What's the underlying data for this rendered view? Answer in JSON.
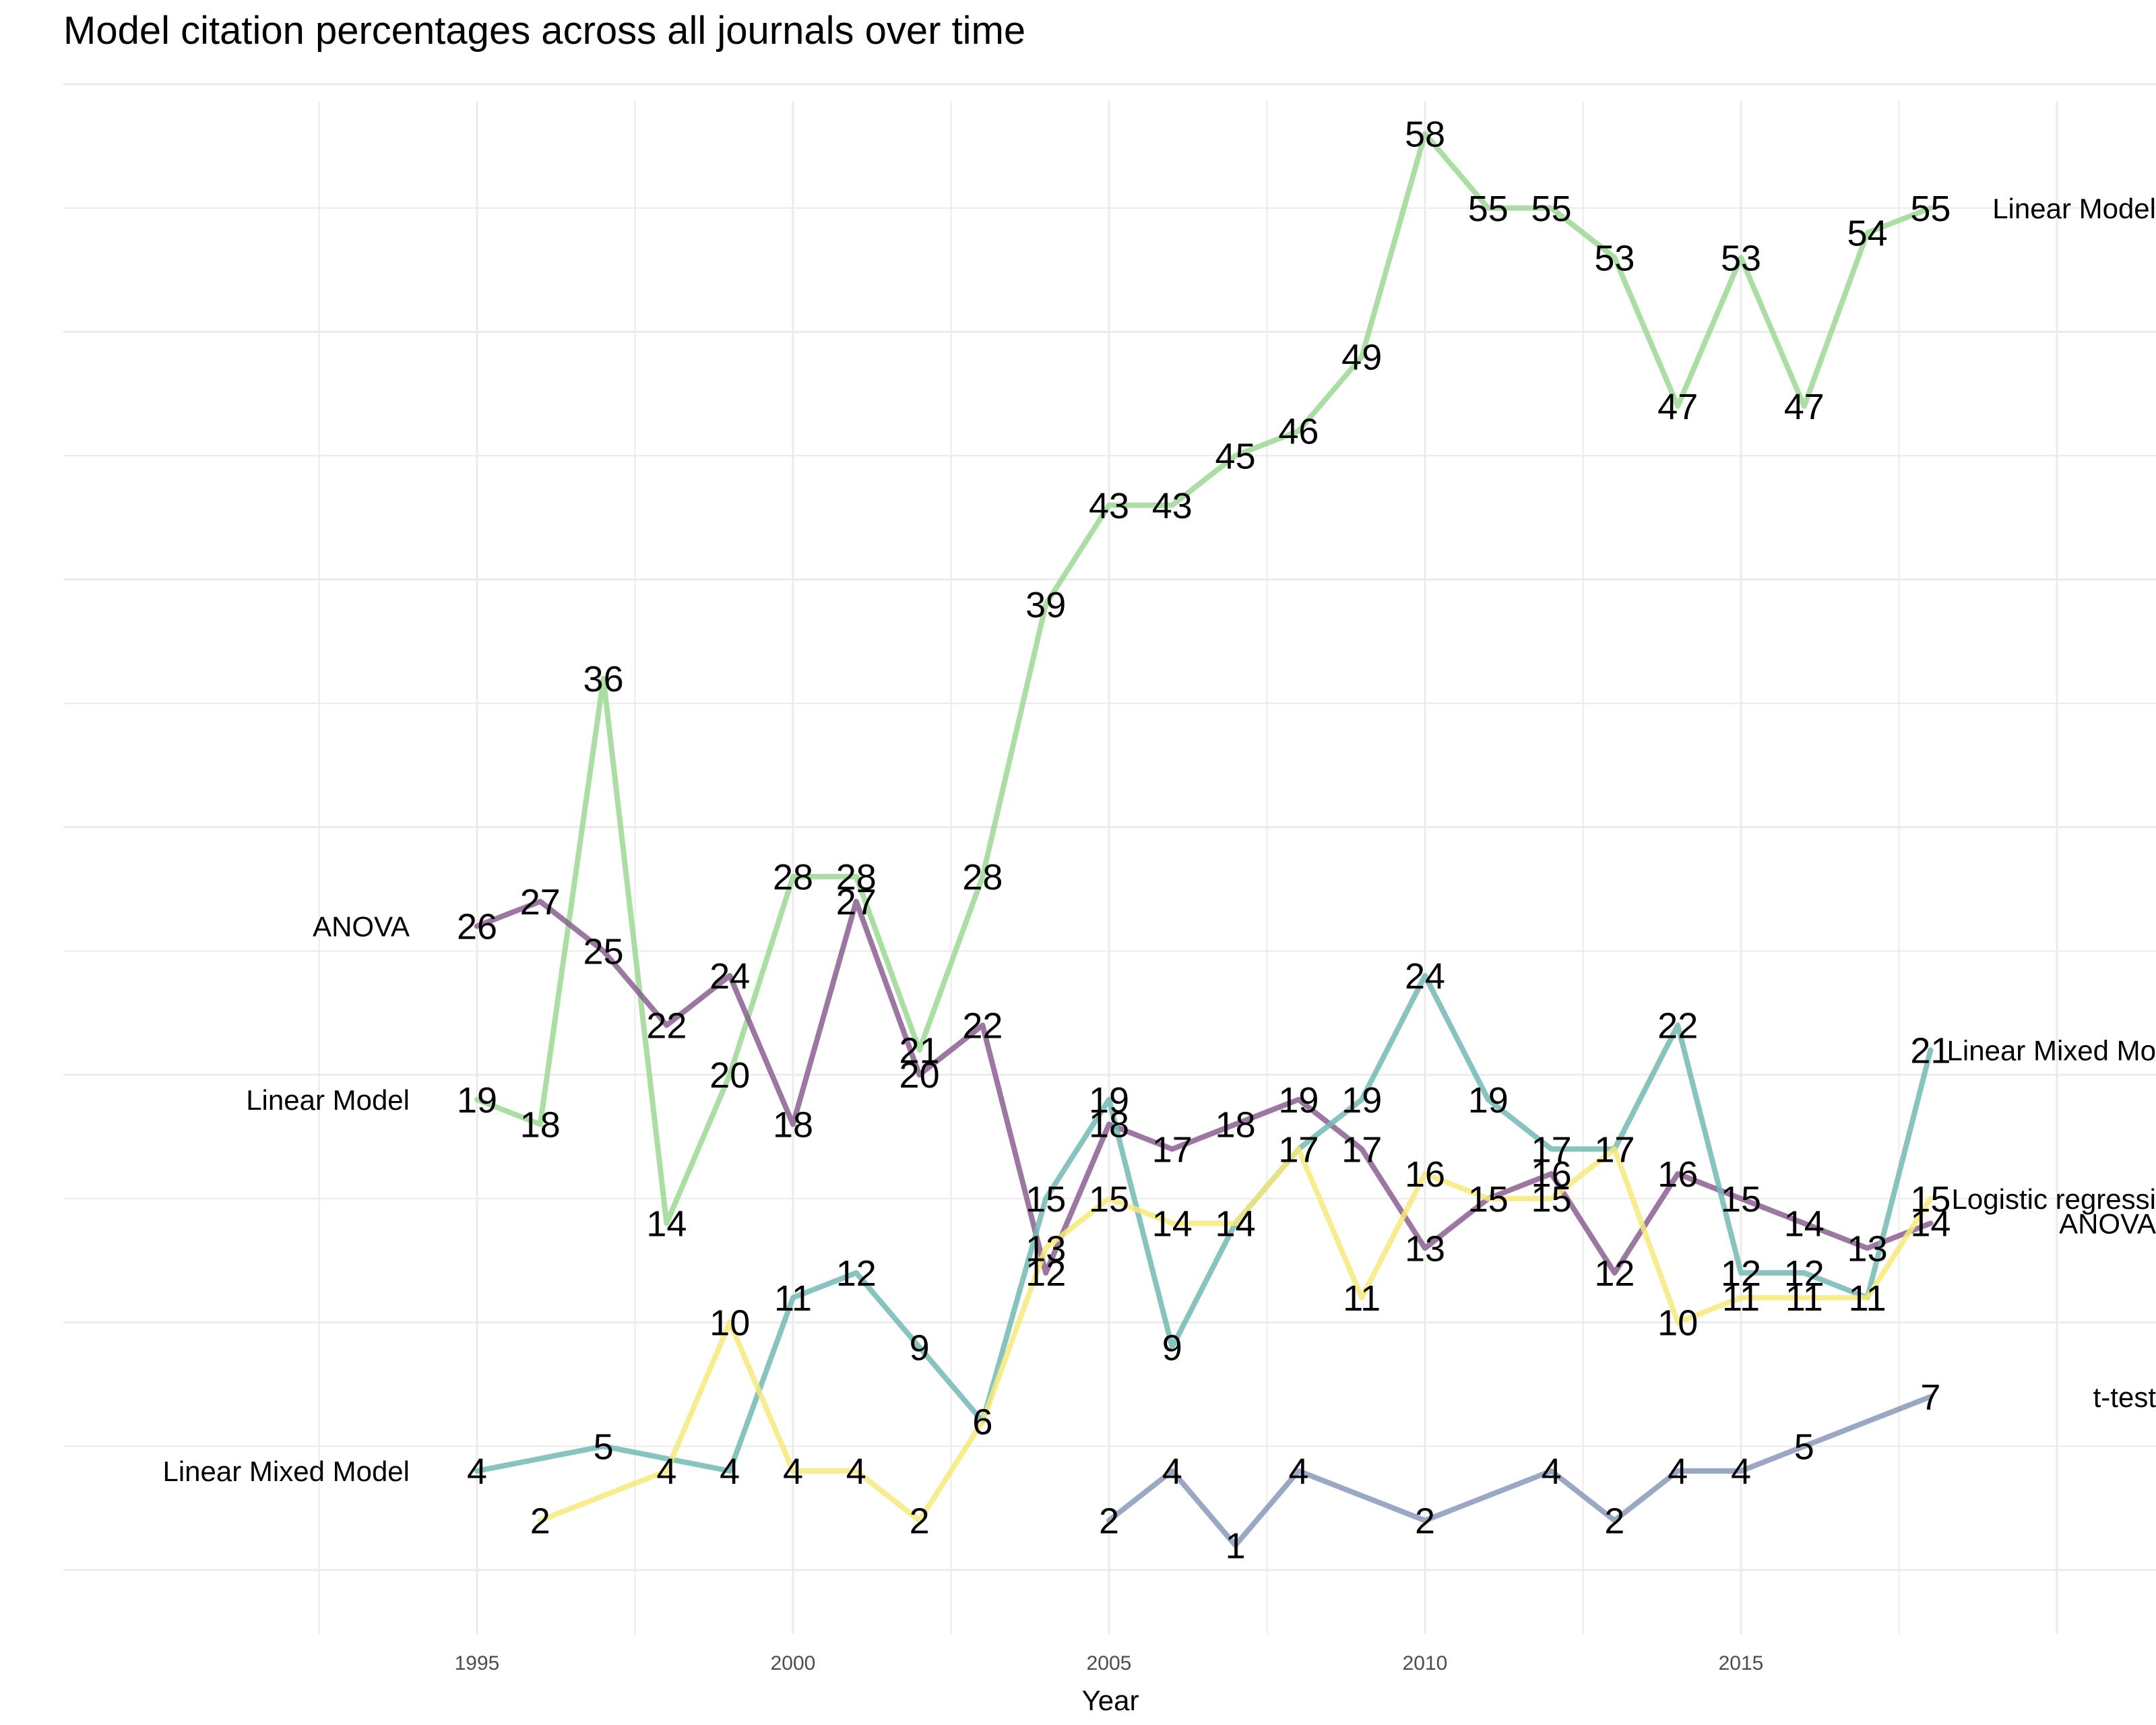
{
  "chart_data": {
    "type": "line",
    "title": "Model citation percentages across all journals over time",
    "xlabel": "Year",
    "ylabel": "",
    "x_ticks": [
      1995,
      2000,
      2005,
      2010,
      2015
    ],
    "xlim": [
      1989.5,
      2021.5
    ],
    "ylim": [
      -2,
      60
    ],
    "grid": true,
    "legend": "direct labels at line ends",
    "series": [
      {
        "name": "Linear Model",
        "color": "#9bd893",
        "x": [
          1995,
          1996,
          1997,
          1998,
          1999,
          2000,
          2001,
          2002,
          2003,
          2004,
          2005,
          2006,
          2007,
          2008,
          2009,
          2010,
          2011,
          2012,
          2013,
          2014,
          2015,
          2016,
          2017,
          2018
        ],
        "values": [
          19,
          18,
          36,
          14,
          20,
          28,
          28,
          21,
          28,
          39,
          43,
          43,
          45,
          46,
          49,
          58,
          55,
          55,
          53,
          47,
          53,
          47,
          54,
          55
        ],
        "start_label": "Linear Model",
        "end_label": "Linear Model"
      },
      {
        "name": "ANOVA",
        "color": "#8a5f91",
        "x": [
          1995,
          1996,
          1997,
          1998,
          1999,
          2000,
          2001,
          2002,
          2003,
          2004,
          2005,
          2006,
          2007,
          2008,
          2009,
          2010,
          2011,
          2012,
          2013,
          2014,
          2015,
          2016,
          2017,
          2018
        ],
        "values": [
          26,
          27,
          25,
          22,
          24,
          18,
          27,
          20,
          22,
          12,
          18,
          17,
          18,
          19,
          17,
          13,
          15,
          16,
          12,
          16,
          15,
          14,
          13,
          14
        ],
        "start_label": "ANOVA",
        "end_label": "ANOVA"
      },
      {
        "name": "Linear Mixed Model",
        "color": "#72bab4",
        "x": [
          1995,
          1997,
          1999,
          2000,
          2001,
          2002,
          2003,
          2004,
          2005,
          2006,
          2007,
          2008,
          2009,
          2010,
          2011,
          2012,
          2013,
          2014,
          2015,
          2016,
          2017,
          2018
        ],
        "values": [
          4,
          5,
          4,
          11,
          12,
          9,
          6,
          15,
          19,
          9,
          14,
          17,
          19,
          24,
          19,
          17,
          17,
          22,
          12,
          12,
          11,
          21
        ],
        "start_label": "Linear Mixed Model",
        "end_label": "Linear Mixed Mo"
      },
      {
        "name": "Logistic regression",
        "color": "#f6e97a",
        "x": [
          1996,
          1998,
          1999,
          2000,
          2001,
          2002,
          2003,
          2004,
          2005,
          2006,
          2007,
          2008,
          2009,
          2010,
          2011,
          2012,
          2013,
          2014,
          2015,
          2016,
          2017,
          2018
        ],
        "values": [
          2,
          4,
          10,
          4,
          4,
          2,
          6,
          13,
          15,
          14,
          14,
          17,
          11,
          16,
          15,
          15,
          17,
          10,
          11,
          11,
          11,
          15
        ],
        "start_label": "",
        "end_label": "Logistic regressi"
      },
      {
        "name": "t-test",
        "color": "#8899bb",
        "x": [
          2005,
          2006,
          2007,
          2008,
          2010,
          2012,
          2013,
          2014,
          2015,
          2016,
          2018
        ],
        "values": [
          2,
          4,
          1,
          4,
          2,
          4,
          2,
          4,
          4,
          5,
          7
        ],
        "start_label": "",
        "end_label": "t-test"
      }
    ]
  }
}
